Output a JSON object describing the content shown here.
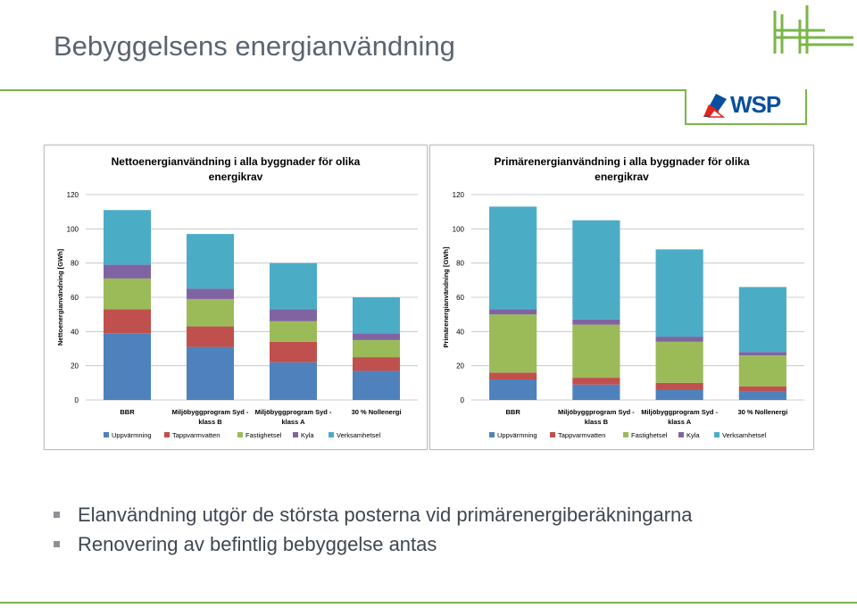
{
  "slide": {
    "title": "Bebyggelsens energianvändning",
    "bullets": [
      "Elanvändning utgör de största posterna vid primärenergiberäkningarna",
      "Renovering av befintlig bebyggelse antas"
    ],
    "brand_text": "WSP"
  },
  "colors": {
    "accent_green": "#7ab648",
    "series": [
      "#4f81bd",
      "#c0504d",
      "#9bbb59",
      "#8064a2",
      "#4bacc6"
    ]
  },
  "chart_data": [
    {
      "type": "bar",
      "stacked": true,
      "title_line1": "Nettoenergianvändning i alla byggnader för olika",
      "title_line2": "energikrav",
      "ylabel": "Nettoenergianvändning [GWh]",
      "ylim": [
        0,
        120
      ],
      "yticks": [
        "0",
        "20",
        "40",
        "60",
        "80",
        "100",
        "120"
      ],
      "categories": [
        [
          "BBR"
        ],
        [
          "Miljöbyggprogram Syd -",
          "klass B"
        ],
        [
          "Miljöbyggprogram Syd -",
          "klass A"
        ],
        [
          "30 % Nollenergi"
        ]
      ],
      "series": [
        {
          "name": "Uppvärmning",
          "values": [
            39,
            31,
            22,
            17
          ]
        },
        {
          "name": "Tappvarmvatten",
          "values": [
            14,
            12,
            12,
            8
          ]
        },
        {
          "name": "Fastighetsel",
          "values": [
            18,
            16,
            12,
            10
          ]
        },
        {
          "name": "Kyla",
          "values": [
            8,
            6,
            7,
            4
          ]
        },
        {
          "name": "Verksamhetsel",
          "values": [
            32,
            32,
            27,
            21
          ]
        }
      ]
    },
    {
      "type": "bar",
      "stacked": true,
      "title_line1": "Primärenergianvändning  i alla byggnader  för olika",
      "title_line2": "energikrav",
      "ylabel": "Primärenergianvändning [GWh]",
      "ylim": [
        0,
        120
      ],
      "yticks": [
        "0",
        "20",
        "40",
        "60",
        "80",
        "100",
        "120"
      ],
      "categories": [
        [
          "BBR"
        ],
        [
          "Miljöbyggprogram Syd -",
          "klass B"
        ],
        [
          "Miljöbyggprogram Syd -",
          "klass A"
        ],
        [
          "30 % Nollenergi"
        ]
      ],
      "series": [
        {
          "name": "Uppvärmning",
          "values": [
            12,
            9,
            6,
            5
          ]
        },
        {
          "name": "Tappvarmvatten",
          "values": [
            4,
            4,
            4,
            3
          ]
        },
        {
          "name": "Fastighetsel",
          "values": [
            34,
            31,
            24,
            18
          ]
        },
        {
          "name": "Kyla",
          "values": [
            3,
            3,
            3,
            2
          ]
        },
        {
          "name": "Verksamhetsel",
          "values": [
            60,
            58,
            51,
            38
          ]
        }
      ]
    }
  ]
}
